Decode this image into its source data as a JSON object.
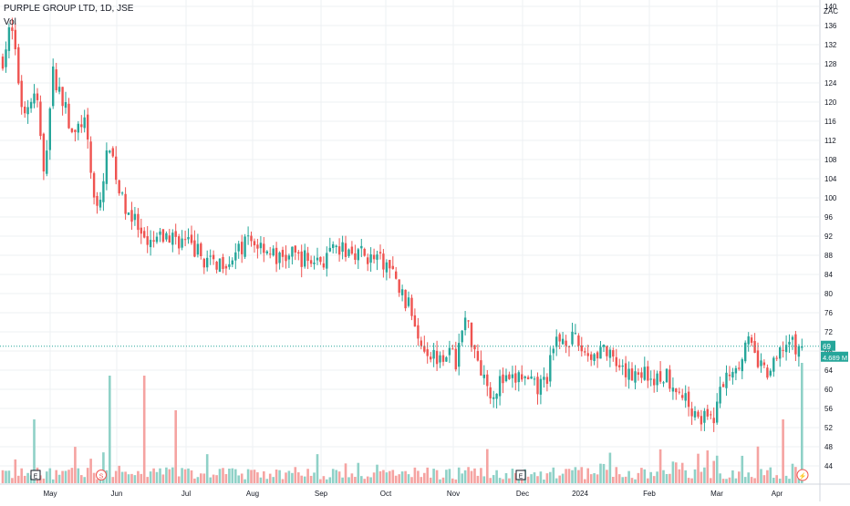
{
  "header": {
    "title": "PURPLE GROUP LTD, 1D, JSE",
    "volume_label": "Vol",
    "currency": "ZAC"
  },
  "colors": {
    "up": "#26a69a",
    "down": "#ef5350",
    "up_volume": "#8fd1c7",
    "down_volume": "#f5a3a1",
    "grid": "#eef0f3",
    "axis_text": "#131722"
  },
  "badges": {
    "price_label": "69",
    "volume_label": "4.689 M"
  },
  "events": [
    {
      "label": "E",
      "kind": "earnings",
      "at": "May"
    },
    {
      "label": "S",
      "kind": "split",
      "at": "Jun"
    },
    {
      "label": "E",
      "kind": "earnings",
      "at": "Dec"
    },
    {
      "label": "⚡",
      "kind": "news",
      "at": "Apr"
    }
  ],
  "chart_data": {
    "type": "candlestick",
    "title": "PURPLE GROUP LTD, 1D, JSE",
    "ylabel": "ZAC",
    "ylim": [
      41,
      142
    ],
    "y_ticks": [
      140,
      136,
      132,
      128,
      124,
      120,
      116,
      112,
      108,
      104,
      100,
      96,
      92,
      88,
      84,
      80,
      76,
      72,
      68,
      64,
      60,
      56,
      52,
      48,
      44
    ],
    "x_ticks": [
      "May",
      "Jun",
      "Jul",
      "Aug",
      "Sep",
      "Oct",
      "Nov",
      "Dec",
      "2024",
      "Feb",
      "Mar",
      "Apr"
    ],
    "grid": true,
    "last_price": 69,
    "last_volume": "4.689 M",
    "price_path": [
      {
        "period": "May",
        "close": 130
      },
      {
        "period": "Jun",
        "close": 93
      },
      {
        "period": "Jul",
        "close": 90
      },
      {
        "period": "Aug",
        "close": 88
      },
      {
        "period": "Sep",
        "close": 87
      },
      {
        "period": "Oct",
        "close": 84
      },
      {
        "period": "Nov",
        "close": 66
      },
      {
        "period": "Dec",
        "close": 62
      },
      {
        "period": "2024",
        "close": 70
      },
      {
        "period": "Feb",
        "close": 61
      },
      {
        "period": "Mar",
        "close": 60
      },
      {
        "period": "Apr",
        "close": 69
      }
    ]
  }
}
